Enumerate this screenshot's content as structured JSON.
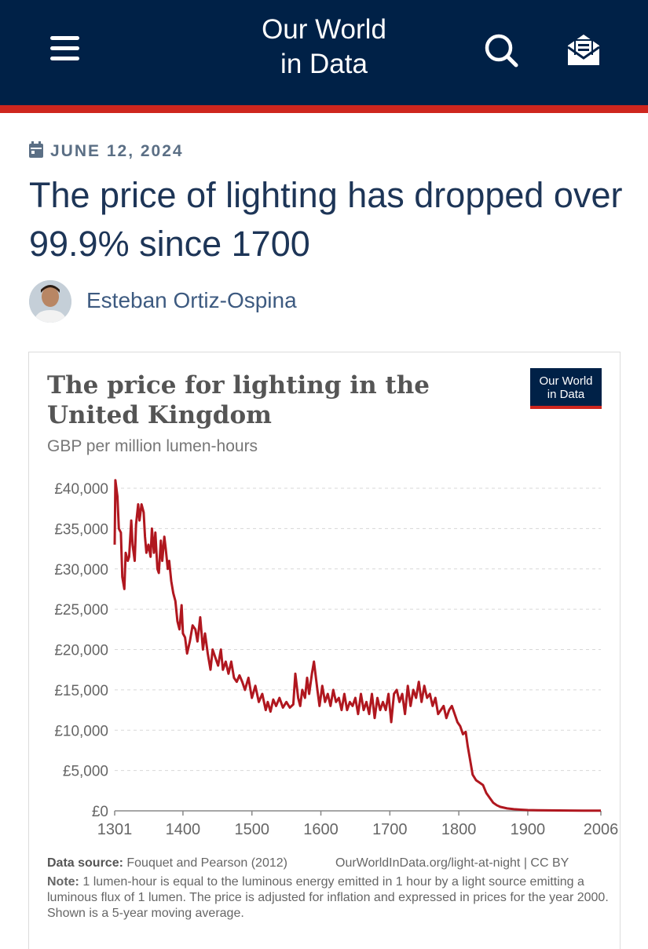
{
  "header": {
    "logo_line1": "Our World",
    "logo_line2": "in Data",
    "menu_icon": "hamburger-menu-icon",
    "search_icon": "search-icon",
    "newsletter_icon": "mail-icon"
  },
  "colors": {
    "header_bg": "#002147",
    "accent_red": "#ce261e",
    "line": "#b0171f"
  },
  "article": {
    "date": "JUNE 12, 2024",
    "title": "The price of lighting has dropped over 99.9% since 1700",
    "author": "Esteban Ortiz-Ospina"
  },
  "chart": {
    "badge_line1": "Our World",
    "badge_line2": "in Data",
    "source_label": "Data source:",
    "source_text": "Fouquet and Pearson (2012)",
    "source_url": "OurWorldInData.org/light-at-night | CC BY",
    "note_label": "Note:",
    "note_text": "1 lumen-hour is equal to the luminous energy emitted in 1 hour by a light source emitting a luminous flux of 1 lumen. The price is adjusted for inflation and expressed in prices for the year 2000. Shown is a 5-year moving average."
  },
  "chart_data": {
    "type": "line",
    "title": "The price for lighting in the United Kingdom",
    "subtitle": "GBP per million lumen-hours",
    "xlabel": "",
    "ylabel": "",
    "xlim": [
      1301,
      2006
    ],
    "ylim": [
      0,
      40000
    ],
    "x_ticks": [
      1301,
      1400,
      1500,
      1600,
      1700,
      1800,
      1900,
      2006
    ],
    "y_ticks": [
      0,
      5000,
      10000,
      15000,
      20000,
      25000,
      30000,
      35000,
      40000
    ],
    "y_tick_labels": [
      "£0",
      "£5,000",
      "£10,000",
      "£15,000",
      "£20,000",
      "£25,000",
      "£30,000",
      "£35,000",
      "£40,000"
    ],
    "grid": "horizontal dashed",
    "legend": "none",
    "series": [
      {
        "color": "#b0171f",
        "x": [
          1301,
          1302,
          1305,
          1307,
          1310,
          1312,
          1315,
          1317,
          1320,
          1322,
          1325,
          1327,
          1330,
          1332,
          1335,
          1337,
          1340,
          1343,
          1345,
          1347,
          1350,
          1353,
          1355,
          1358,
          1360,
          1363,
          1365,
          1368,
          1370,
          1373,
          1375,
          1378,
          1380,
          1383,
          1386,
          1389,
          1392,
          1395,
          1398,
          1400,
          1403,
          1406,
          1410,
          1414,
          1418,
          1421,
          1425,
          1429,
          1432,
          1436,
          1440,
          1443,
          1447,
          1451,
          1455,
          1458,
          1462,
          1466,
          1470,
          1474,
          1478,
          1482,
          1486,
          1490,
          1495,
          1500,
          1505,
          1510,
          1515,
          1520,
          1523,
          1527,
          1531,
          1535,
          1540,
          1545,
          1550,
          1555,
          1560,
          1563,
          1567,
          1570,
          1573,
          1577,
          1580,
          1583,
          1587,
          1590,
          1595,
          1598,
          1602,
          1606,
          1610,
          1614,
          1618,
          1622,
          1626,
          1630,
          1634,
          1638,
          1642,
          1646,
          1650,
          1654,
          1658,
          1662,
          1666,
          1670,
          1674,
          1678,
          1682,
          1686,
          1690,
          1694,
          1698,
          1702,
          1706,
          1710,
          1714,
          1718,
          1722,
          1726,
          1730,
          1734,
          1738,
          1742,
          1746,
          1750,
          1754,
          1758,
          1762,
          1766,
          1770,
          1774,
          1778,
          1782,
          1786,
          1790,
          1794,
          1798,
          1802,
          1806,
          1810,
          1813,
          1816,
          1820,
          1825,
          1830,
          1835,
          1840,
          1845,
          1850,
          1855,
          1860,
          1870,
          1880,
          1890,
          1900,
          1915,
          1930,
          1945,
          1960,
          1980,
          2006
        ],
        "y": [
          33000,
          41000,
          39000,
          35000,
          34500,
          29000,
          27500,
          32000,
          31000,
          31500,
          36000,
          33000,
          31000,
          35500,
          38000,
          36000,
          38000,
          37000,
          34000,
          32000,
          33000,
          31500,
          35000,
          32000,
          34500,
          30000,
          29500,
          33500,
          31000,
          34000,
          32500,
          30000,
          31000,
          28500,
          27000,
          26000,
          23500,
          22500,
          25500,
          22000,
          21500,
          19500,
          21000,
          23000,
          22500,
          21000,
          24000,
          20000,
          22000,
          19500,
          17500,
          20000,
          19000,
          18000,
          20000,
          17500,
          18500,
          17000,
          18500,
          16500,
          16000,
          16800,
          16000,
          15000,
          16500,
          14000,
          15500,
          13500,
          14500,
          12500,
          13500,
          12300,
          13800,
          13000,
          14000,
          12800,
          13500,
          12800,
          13200,
          17000,
          14000,
          13000,
          15000,
          14000,
          16500,
          14500,
          17000,
          18500,
          15000,
          13000,
          15500,
          13500,
          14500,
          13000,
          15000,
          13500,
          14000,
          12500,
          14500,
          12500,
          13500,
          13000,
          14000,
          12000,
          14500,
          12500,
          13500,
          12000,
          14500,
          11500,
          14000,
          12500,
          13500,
          12500,
          14500,
          11000,
          14500,
          15000,
          13500,
          14500,
          12000,
          15500,
          13000,
          15000,
          14000,
          16000,
          13500,
          15500,
          14000,
          14500,
          13000,
          14000,
          12000,
          12500,
          13000,
          11500,
          12500,
          13000,
          12000,
          11000,
          10500,
          9500,
          9800,
          8000,
          6500,
          4500,
          3800,
          3500,
          3200,
          2200,
          1600,
          1000,
          700,
          500,
          300,
          200,
          150,
          100,
          80,
          60,
          50,
          40,
          30,
          20
        ]
      }
    ]
  }
}
